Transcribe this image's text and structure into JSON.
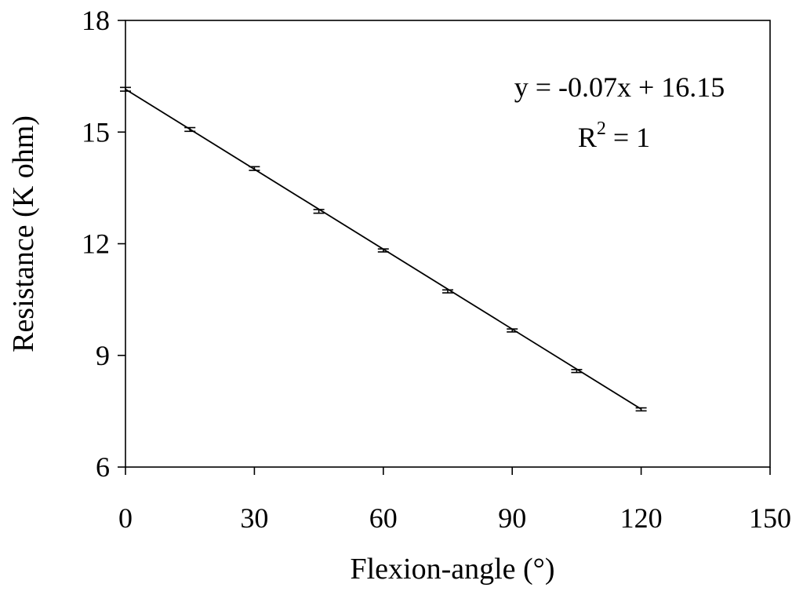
{
  "chart_data": {
    "type": "scatter",
    "xlabel": "Flexion-angle (°)",
    "ylabel": "Resistance (K ohm)",
    "xlim": [
      0,
      150
    ],
    "ylim": [
      6,
      18
    ],
    "xticks": [
      "0",
      "30",
      "60",
      "90",
      "120",
      "150"
    ],
    "yticks": [
      "6",
      "9",
      "12",
      "15",
      "18"
    ],
    "grid": false,
    "series": [
      {
        "x": [
          0,
          15,
          30,
          45,
          60,
          75,
          90,
          105,
          120
        ],
        "y": [
          16.15,
          15.07,
          14.02,
          12.87,
          11.82,
          10.72,
          9.67,
          8.58,
          7.55
        ],
        "error": [
          0.05,
          0.05,
          0.05,
          0.05,
          0.04,
          0.04,
          0.04,
          0.04,
          0.04
        ],
        "trendline": {
          "slope": -0.0716,
          "intercept": 16.15,
          "x_range": [
            0,
            120
          ]
        }
      }
    ],
    "annotations": {
      "equation": "y = -0.07x + 16.15",
      "r2_prefix": "R",
      "r2_sup": "2",
      "r2_suffix": " = 1"
    }
  }
}
